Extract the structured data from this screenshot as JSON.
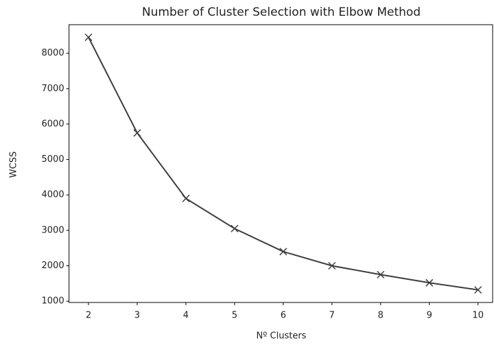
{
  "chart_data": {
    "type": "line",
    "title": "Number of Cluster Selection with Elbow Method",
    "xlabel": "Nº Clusters",
    "ylabel": "WCSS",
    "x": [
      2,
      3,
      4,
      5,
      6,
      7,
      8,
      9,
      10
    ],
    "series": [
      {
        "color": "#3d3d3d",
        "marker": "x",
        "values": [
          8450,
          5750,
          3900,
          3050,
          2400,
          2000,
          1750,
          1520,
          1320
        ]
      }
    ],
    "xlim": [
      1.6,
      10.3
    ],
    "xticks": [
      2,
      3,
      4,
      5,
      6,
      7,
      8,
      9,
      10
    ],
    "ylim": [
      964,
      8806
    ],
    "yticks": [
      1000,
      2000,
      3000,
      4000,
      5000,
      6000,
      7000,
      8000
    ],
    "grid": false
  }
}
